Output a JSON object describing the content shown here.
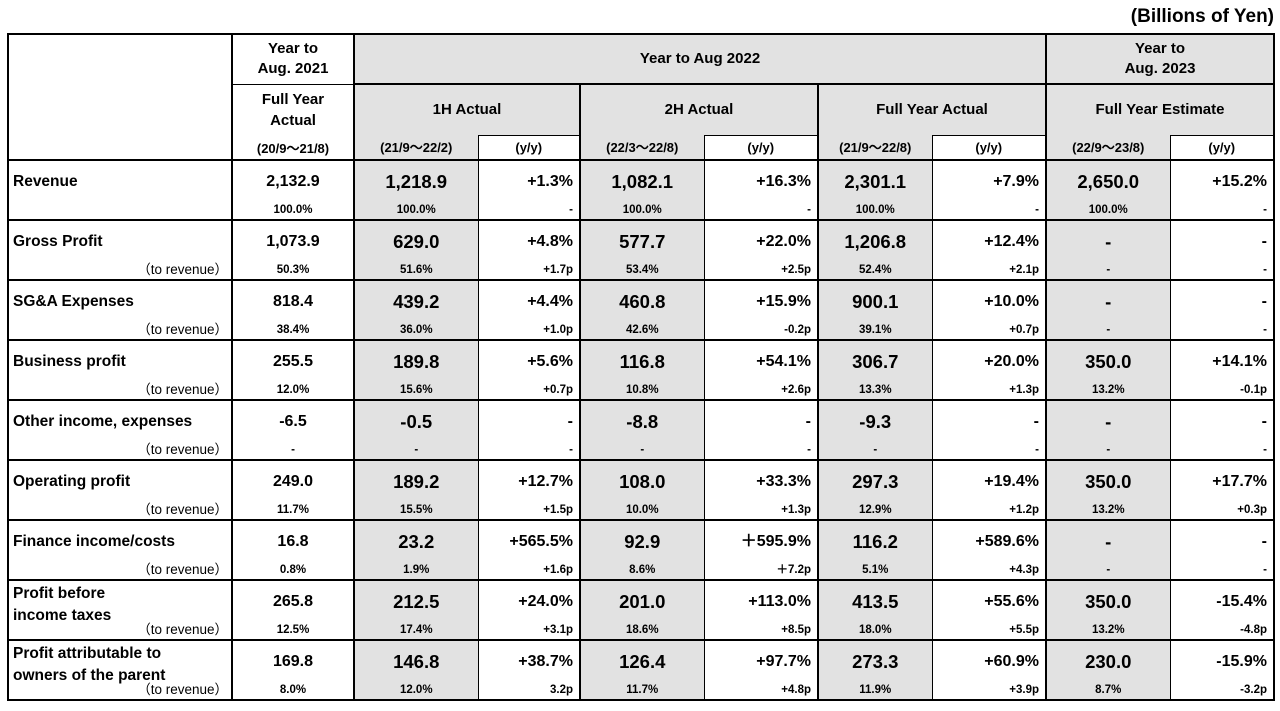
{
  "unit_note": "(Billions of Yen)",
  "headers": {
    "fy2021_period": "Year to\nAug. 2021",
    "fy2022_period": "Year to Aug 2022",
    "fy2023_period": "Year to\nAug. 2023",
    "fy2021_type": "Full Year\nActual",
    "h1_actual": "1H Actual",
    "h2_actual": "2H Actual",
    "fy_actual": "Full Year Actual",
    "fy_estimate": "Full Year Estimate",
    "fy2021_range": "(20/9～21/8)",
    "h1_range": "(21/9～22/2)",
    "h2_range": "(22/3～22/8)",
    "fy_range": "(21/9～22/8)",
    "est_range": "(22/9～23/8)",
    "yy": "(y/y)"
  },
  "rows": [
    {
      "label": "Revenue",
      "sub": "",
      "fy21": [
        "2,132.9",
        "100.0%"
      ],
      "h1": [
        "1,218.9",
        "100.0%"
      ],
      "h1yy": [
        "+1.3%",
        "-"
      ],
      "h2": [
        "1,082.1",
        "100.0%"
      ],
      "h2yy": [
        "+16.3%",
        "-"
      ],
      "fy": [
        "2,301.1",
        "100.0%"
      ],
      "fyyy": [
        "+7.9%",
        "-"
      ],
      "est": [
        "2,650.0",
        "100.0%"
      ],
      "estyy": [
        "+15.2%",
        "-"
      ]
    },
    {
      "label": "Gross Profit",
      "sub": "（to revenue）",
      "fy21": [
        "1,073.9",
        "50.3%"
      ],
      "h1": [
        "629.0",
        "51.6%"
      ],
      "h1yy": [
        "+4.8%",
        "+1.7p"
      ],
      "h2": [
        "577.7",
        "53.4%"
      ],
      "h2yy": [
        "+22.0%",
        "+2.5p"
      ],
      "fy": [
        "1,206.8",
        "52.4%"
      ],
      "fyyy": [
        "+12.4%",
        "+2.1p"
      ],
      "est": [
        "-",
        "-"
      ],
      "estyy": [
        "-",
        "-"
      ]
    },
    {
      "label": "SG&A Expenses",
      "sub": "（to revenue）",
      "fy21": [
        "818.4",
        "38.4%"
      ],
      "h1": [
        "439.2",
        "36.0%"
      ],
      "h1yy": [
        "+4.4%",
        "+1.0p"
      ],
      "h2": [
        "460.8",
        "42.6%"
      ],
      "h2yy": [
        "+15.9%",
        "-0.2p"
      ],
      "fy": [
        "900.1",
        "39.1%"
      ],
      "fyyy": [
        "+10.0%",
        "+0.7p"
      ],
      "est": [
        "-",
        "-"
      ],
      "estyy": [
        "-",
        "-"
      ]
    },
    {
      "label": "Business profit",
      "sub": "（to revenue）",
      "fy21": [
        "255.5",
        "12.0%"
      ],
      "h1": [
        "189.8",
        "15.6%"
      ],
      "h1yy": [
        "+5.6%",
        "+0.7p"
      ],
      "h2": [
        "116.8",
        "10.8%"
      ],
      "h2yy": [
        "+54.1%",
        "+2.6p"
      ],
      "fy": [
        "306.7",
        "13.3%"
      ],
      "fyyy": [
        "+20.0%",
        "+1.3p"
      ],
      "est": [
        "350.0",
        "13.2%"
      ],
      "estyy": [
        "+14.1%",
        "-0.1p"
      ]
    },
    {
      "label": "Other income, expenses",
      "sub": "（to revenue）",
      "fy21": [
        "-6.5",
        "-"
      ],
      "h1": [
        "-0.5",
        "-"
      ],
      "h1yy": [
        "-",
        "-"
      ],
      "h2": [
        "-8.8",
        "-"
      ],
      "h2yy": [
        "-",
        "-"
      ],
      "fy": [
        "-9.3",
        "-"
      ],
      "fyyy": [
        "-",
        "-"
      ],
      "est": [
        "-",
        "-"
      ],
      "estyy": [
        "-",
        "-"
      ]
    },
    {
      "label": "Operating profit",
      "sub": "（to revenue）",
      "fy21": [
        "249.0",
        "11.7%"
      ],
      "h1": [
        "189.2",
        "15.5%"
      ],
      "h1yy": [
        "+12.7%",
        "+1.5p"
      ],
      "h2": [
        "108.0",
        "10.0%"
      ],
      "h2yy": [
        "+33.3%",
        "+1.3p"
      ],
      "fy": [
        "297.3",
        "12.9%"
      ],
      "fyyy": [
        "+19.4%",
        "+1.2p"
      ],
      "est": [
        "350.0",
        "13.2%"
      ],
      "estyy": [
        "+17.7%",
        "+0.3p"
      ]
    },
    {
      "label": "Finance income/costs",
      "sub": "（to revenue）",
      "fy21": [
        "16.8",
        "0.8%"
      ],
      "h1": [
        "23.2",
        "1.9%"
      ],
      "h1yy": [
        "+565.5%",
        "+1.6p"
      ],
      "h2": [
        "92.9",
        "8.6%"
      ],
      "h2yy": [
        "＋595.9%",
        "＋7.2p"
      ],
      "fy": [
        "116.2",
        "5.1%"
      ],
      "fyyy": [
        "+589.6%",
        "+4.3p"
      ],
      "est": [
        "-",
        "-"
      ],
      "estyy": [
        "-",
        "-"
      ]
    },
    {
      "label": "Profit before\nincome taxes",
      "sub": "（to revenue）",
      "fy21": [
        "265.8",
        "12.5%"
      ],
      "h1": [
        "212.5",
        "17.4%"
      ],
      "h1yy": [
        "+24.0%",
        "+3.1p"
      ],
      "h2": [
        "201.0",
        "18.6%"
      ],
      "h2yy": [
        "+113.0%",
        "+8.5p"
      ],
      "fy": [
        "413.5",
        "18.0%"
      ],
      "fyyy": [
        "+55.6%",
        "+5.5p"
      ],
      "est": [
        "350.0",
        "13.2%"
      ],
      "estyy": [
        "-15.4%",
        "-4.8p"
      ]
    },
    {
      "label": "Profit attributable to\nowners of the parent",
      "sub": "（to revenue）",
      "fy21": [
        "169.8",
        "8.0%"
      ],
      "h1": [
        "146.8",
        "12.0%"
      ],
      "h1yy": [
        "+38.7%",
        "3.2p"
      ],
      "h2": [
        "126.4",
        "11.7%"
      ],
      "h2yy": [
        "+97.7%",
        "+4.8p"
      ],
      "fy": [
        "273.3",
        "11.9%"
      ],
      "fyyy": [
        "+60.9%",
        "+3.9p"
      ],
      "est": [
        "230.0",
        "8.7%"
      ],
      "estyy": [
        "-15.9%",
        "-3.2p"
      ]
    }
  ]
}
